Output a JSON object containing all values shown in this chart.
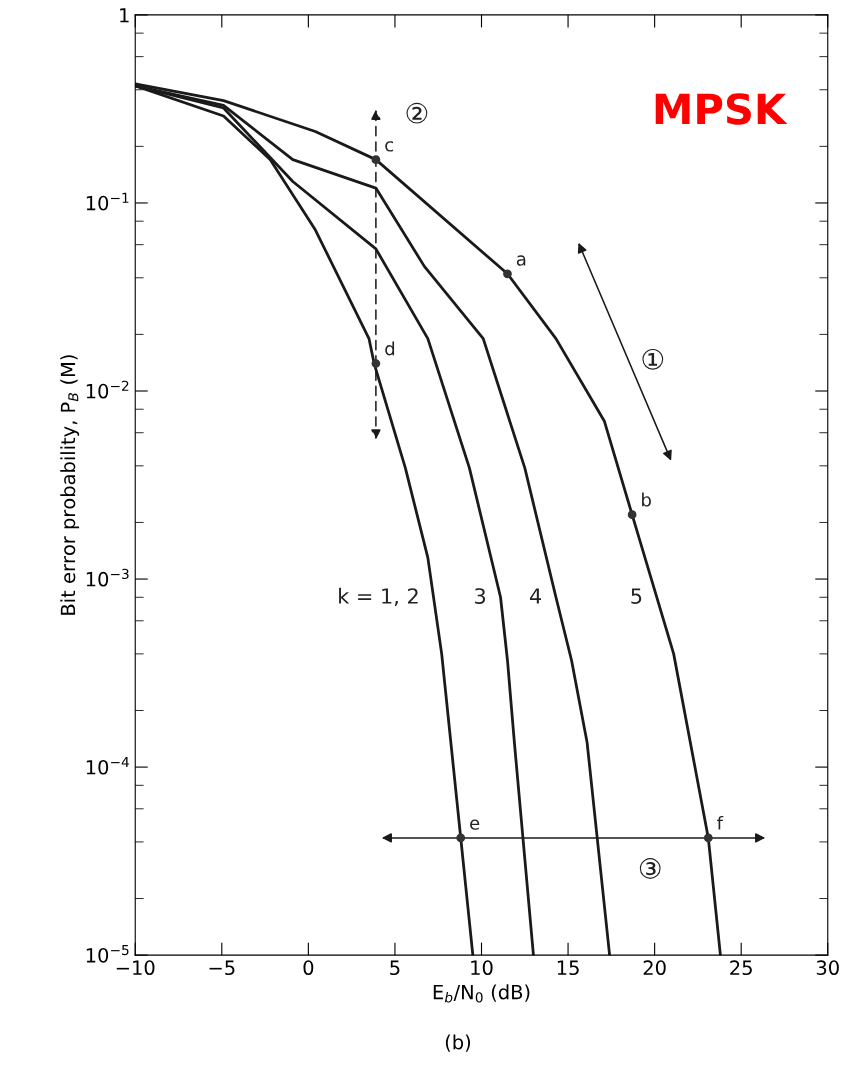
{
  "chart_data": {
    "type": "line",
    "title": "MPSK",
    "xlabel": "E$_{b}$/N$_{0}$ (dB)",
    "ylabel": "Bit error probability, P$_{B}$ (M)",
    "log": "y",
    "xlim": [
      -10,
      30
    ],
    "xticks": [
      {
        "value": -10,
        "label": "−10"
      },
      {
        "value": -5,
        "label": "−5"
      },
      0,
      5,
      10,
      15,
      20,
      25,
      30
    ],
    "ylim": [
      1e-05,
      1
    ],
    "yticks": [
      {
        "value": 1e-05,
        "label": "10$^{−5}$"
      },
      {
        "value": 2e-05,
        "label": null
      },
      {
        "value": 4e-05,
        "label": null
      },
      {
        "value": 6e-05,
        "label": null
      },
      {
        "value": 8e-05,
        "label": null
      },
      {
        "value": 0.0001,
        "label": "10$^{−4}$"
      },
      {
        "value": 0.0002,
        "label": null
      },
      {
        "value": 0.0004,
        "label": null
      },
      {
        "value": 0.0006,
        "label": null
      },
      {
        "value": 0.0008,
        "label": null
      },
      {
        "value": 0.001,
        "label": "10$^{−3}$"
      },
      {
        "value": 0.002,
        "label": null
      },
      {
        "value": 0.004,
        "label": null
      },
      {
        "value": 0.006,
        "label": null
      },
      {
        "value": 0.008,
        "label": null
      },
      {
        "value": 0.01,
        "label": "10$^{−2}$"
      },
      {
        "value": 0.02,
        "label": null
      },
      {
        "value": 0.04,
        "label": null
      },
      {
        "value": 0.06,
        "label": null
      },
      {
        "value": 0.08,
        "label": null
      },
      {
        "value": 0.1,
        "label": "10$^{−1}$"
      },
      {
        "value": 0.2,
        "label": null
      },
      {
        "value": 0.4,
        "label": null
      },
      {
        "value": 0.6,
        "label": null
      },
      {
        "value": 0.8,
        "label": null
      },
      {
        "value": 1,
        "label": "1"
      }
    ],
    "grid": false,
    "marker": "none",
    "line_style": "solid",
    "series": [
      {
        "name": "k = 1, 2",
        "color": "#1a1a1a",
        "x": [
          -10,
          -4.9,
          -2.2,
          0.4,
          3.5,
          3.8,
          5.6,
          6.9,
          7.7,
          8.8,
          9.5
        ],
        "values": [
          0.42,
          0.29,
          0.17,
          0.072,
          0.019,
          0.014,
          0.0039,
          0.0013,
          0.0004,
          4.2e-05,
          1e-05
        ]
      },
      {
        "name": "3",
        "color": "#1a1a1a",
        "x": [
          -10,
          -4.9,
          -0.9,
          3.9,
          6.9,
          9.3,
          11.1,
          11.5,
          11.9,
          13.0
        ],
        "values": [
          0.42,
          0.32,
          0.13,
          0.057,
          0.019,
          0.0039,
          0.0008,
          0.00037,
          0.000135,
          1e-05
        ]
      },
      {
        "name": "4",
        "color": "#1a1a1a",
        "x": [
          -10,
          -4.9,
          -0.9,
          3.9,
          6.7,
          10.1,
          12.5,
          14.3,
          15.2,
          16.1,
          17.4
        ],
        "values": [
          0.42,
          0.33,
          0.17,
          0.12,
          0.046,
          0.019,
          0.0039,
          0.0008,
          0.00037,
          0.000135,
          1e-05
        ]
      },
      {
        "name": "5",
        "color": "#1a1a1a",
        "x": [
          -10,
          -4.9,
          0.4,
          3.9,
          11.5,
          14.3,
          17.1,
          18.7,
          21.1,
          23.1,
          23.8
        ],
        "values": [
          0.43,
          0.35,
          0.24,
          0.17,
          0.042,
          0.019,
          0.0069,
          0.0022,
          0.0004,
          4.2e-05,
          1e-05
        ]
      },
      {
        "type": "scatter",
        "marker": "circle",
        "color": "#333333",
        "x": [
          11.5,
          18.7,
          3.9,
          3.9,
          8.8,
          23.1
        ],
        "values": [
          0.042,
          0.0022,
          0.17,
          0.014,
          4.2e-05,
          4.2e-05
        ],
        "value_labels": [
          "a",
          "b",
          "c",
          "d",
          "e",
          "f"
        ]
      }
    ],
    "annotations": [
      "②",
      "①",
      "③",
      "(b)"
    ]
  }
}
